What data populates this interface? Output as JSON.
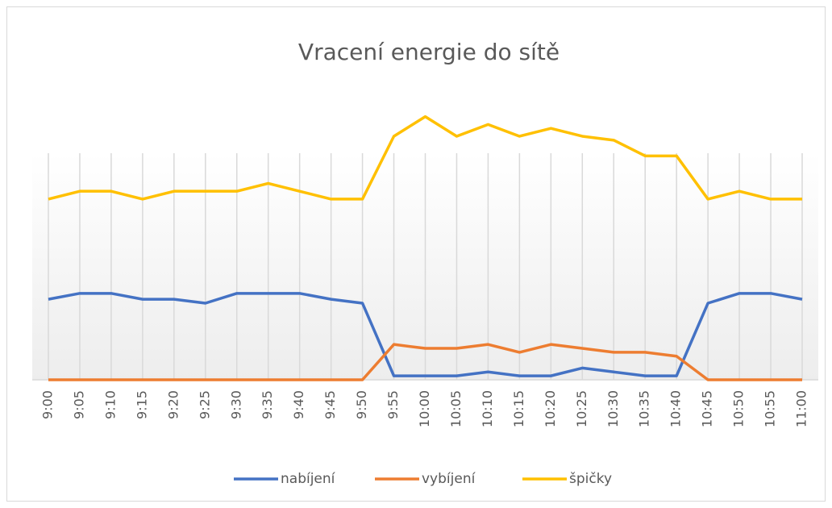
{
  "chart_data": {
    "type": "line",
    "title": "Vracení energie do sítě",
    "categories": [
      "9:00",
      "9:05",
      "9:10",
      "9:15",
      "9:20",
      "9:25",
      "9:30",
      "9:35",
      "9:40",
      "9:45",
      "9:50",
      "9:55",
      "10:00",
      "10:05",
      "10:10",
      "10:15",
      "10:20",
      "10:25",
      "10:30",
      "10:35",
      "10:40",
      "10:45",
      "10:50",
      "10:55",
      "11:00"
    ],
    "series": [
      {
        "name": "nabíjení",
        "color": "#4472c4",
        "values": [
          20.5,
          22,
          22,
          20.5,
          20.5,
          19.5,
          22,
          22,
          22,
          20.5,
          19.5,
          1,
          1,
          1,
          2,
          1,
          1,
          3,
          2,
          1,
          1,
          19.5,
          22,
          22,
          20.5
        ]
      },
      {
        "name": "vybíjení",
        "color": "#ed7d31",
        "values": [
          0,
          0,
          0,
          0,
          0,
          0,
          0,
          0,
          0,
          0,
          0,
          9,
          8,
          8,
          9,
          7,
          9,
          8,
          7,
          7,
          6,
          0,
          0,
          0,
          0
        ]
      },
      {
        "name": "špičky",
        "color": "#ffc000",
        "values": [
          46,
          48,
          48,
          46,
          48,
          48,
          48,
          50,
          48,
          46,
          46,
          62,
          67,
          62,
          65,
          62,
          64,
          62,
          61,
          57,
          57,
          46,
          48,
          46,
          46
        ]
      }
    ],
    "ylim": [
      0,
      70
    ],
    "grid": true,
    "legend": "bottom"
  }
}
